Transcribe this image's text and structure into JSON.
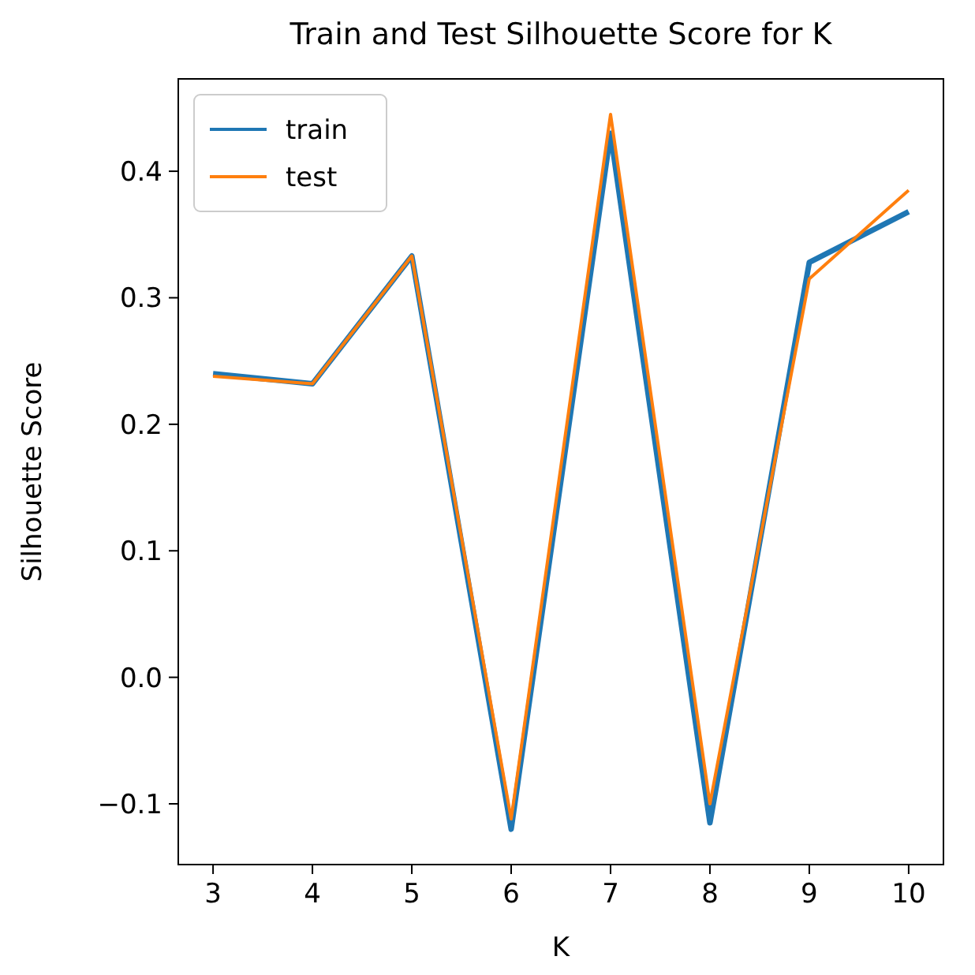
{
  "chart_data": {
    "type": "line",
    "title": "Train and Test Silhouette Score for K",
    "xlabel": "K",
    "ylabel": "Silhouette Score",
    "x": [
      3,
      4,
      5,
      6,
      7,
      8,
      9,
      10
    ],
    "series": [
      {
        "name": "train",
        "color": "#1f77b4",
        "values": [
          0.24,
          0.232,
          0.333,
          -0.12,
          0.43,
          -0.115,
          0.328,
          0.368
        ]
      },
      {
        "name": "test",
        "color": "#ff7f0e",
        "values": [
          0.238,
          0.232,
          0.333,
          -0.112,
          0.445,
          -0.1,
          0.315,
          0.385
        ]
      }
    ],
    "xlim": [
      2.65,
      10.35
    ],
    "xticks": [
      3,
      4,
      5,
      6,
      7,
      8,
      9,
      10
    ],
    "ylim": [
      -0.148,
      0.473
    ],
    "yticks": [
      {
        "value": -0.1,
        "label": "−0.1"
      },
      {
        "value": 0,
        "label": "0.0"
      },
      {
        "value": 0.1,
        "label": "0.1"
      },
      {
        "value": 0.2,
        "label": "0.2"
      },
      {
        "value": 0.3,
        "label": "0.3"
      },
      {
        "value": 0.4,
        "label": "0.4"
      }
    ],
    "legend": "top left",
    "grid": false,
    "marker": "none",
    "line_style": "solid"
  }
}
